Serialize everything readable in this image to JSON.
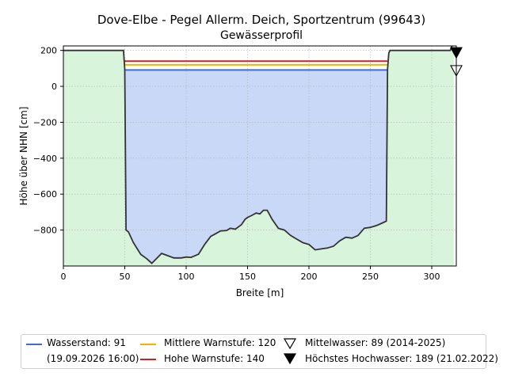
{
  "chart_data": {
    "type": "area",
    "title": "Dove-Elbe - Pegel Allerm. Deich, Sportzentrum (99643)",
    "subtitle": "Gewässerprofil",
    "xlabel": "Breite [m]",
    "ylabel": "Höhe über NHN [cm]",
    "xlim": [
      0,
      320
    ],
    "ylim": [
      -1000,
      225
    ],
    "x_ticks": [
      0,
      50,
      100,
      150,
      200,
      250,
      300
    ],
    "y_ticks": [
      200,
      0,
      -200,
      -400,
      -600,
      -800
    ],
    "grid": true,
    "profile": {
      "x": [
        0,
        49,
        50,
        51,
        53,
        57,
        63,
        68,
        72,
        77,
        80,
        84,
        90,
        96,
        100,
        104,
        110,
        115,
        120,
        124,
        128,
        133,
        136,
        140,
        145,
        148,
        150,
        153,
        157,
        160,
        163,
        166,
        170,
        175,
        180,
        185,
        190,
        195,
        200,
        205,
        210,
        215,
        220,
        225,
        230,
        235,
        240,
        245,
        250,
        255,
        260,
        263,
        264,
        265,
        266,
        270,
        280,
        300,
        315,
        318
      ],
      "y": [
        200,
        200,
        95,
        -800,
        -810,
        -870,
        -935,
        -960,
        -985,
        -950,
        -930,
        -940,
        -955,
        -955,
        -950,
        -952,
        -935,
        -880,
        -835,
        -820,
        -805,
        -802,
        -790,
        -795,
        -770,
        -740,
        -730,
        -720,
        -705,
        -710,
        -690,
        -690,
        -740,
        -790,
        -800,
        -830,
        -850,
        -870,
        -880,
        -910,
        -905,
        -900,
        -890,
        -860,
        -840,
        -845,
        -830,
        -790,
        -785,
        -775,
        -760,
        -750,
        95,
        185,
        200,
        200,
        200,
        200,
        200,
        250
      ]
    },
    "water_level": 91,
    "series": [
      {
        "name": "Wasserstand: 91",
        "color": "#4169e1",
        "value": 91
      },
      {
        "name": "Mittlere Warnstufe: 120",
        "color": "#f0b400",
        "value": 120
      },
      {
        "name": "Hohe Warnstufe: 140",
        "color": "#cc2222",
        "value": 140
      }
    ],
    "markers": [
      {
        "name": "Mittelwasser: 89 (2014-2025)",
        "value": 89,
        "symbol": "open-triangle-down"
      },
      {
        "name": "Höchstes Hochwasser: 189 (21.02.2022)",
        "value": 189,
        "symbol": "filled-triangle-down"
      }
    ],
    "legend": {
      "position": "bottom",
      "water_date": "(19.09.2026 16:00)"
    }
  }
}
